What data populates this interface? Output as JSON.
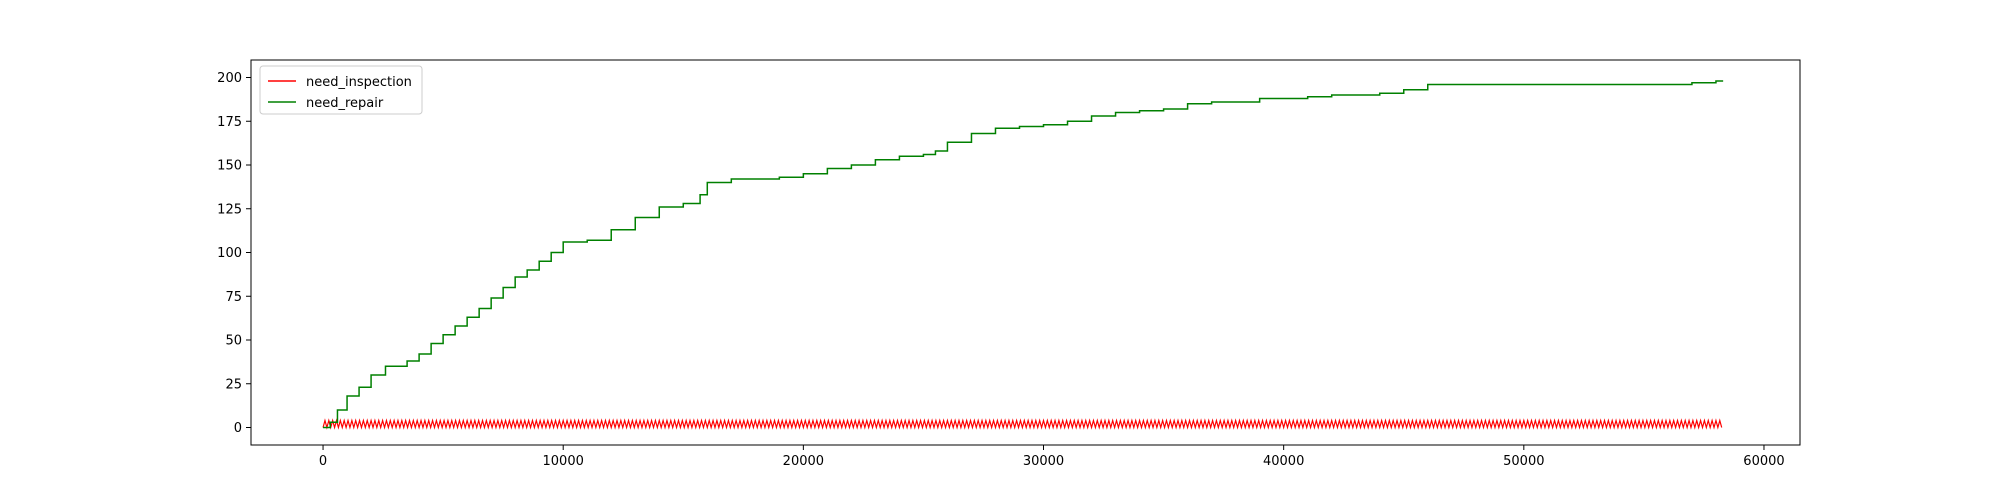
{
  "chart_data": {
    "type": "line",
    "title": "",
    "xlabel": "",
    "ylabel": "",
    "xlim": [
      -3000,
      61500
    ],
    "ylim": [
      -10,
      210
    ],
    "xticks": [
      0,
      10000,
      20000,
      30000,
      40000,
      50000,
      60000
    ],
    "yticks": [
      0,
      25,
      50,
      75,
      100,
      125,
      150,
      175,
      200
    ],
    "xtick_labels": [
      "0",
      "10000",
      "20000",
      "30000",
      "40000",
      "50000",
      "60000"
    ],
    "ytick_labels": [
      "0",
      "25",
      "50",
      "75",
      "100",
      "125",
      "150",
      "175",
      "200"
    ],
    "grid": false,
    "legend": {
      "placement": "top-left"
    },
    "series": [
      {
        "name": "need_inspection",
        "color": "#ff0000",
        "style": "oscillating",
        "x_range": [
          0,
          58300
        ],
        "value_range": [
          0,
          4
        ],
        "period": 160
      },
      {
        "name": "need_repair",
        "color": "#008000",
        "style": "steps",
        "x": [
          0,
          300,
          600,
          1000,
          1500,
          2000,
          2600,
          3500,
          4000,
          4500,
          5000,
          5500,
          6000,
          6500,
          7000,
          7500,
          8000,
          8500,
          9000,
          9500,
          10000,
          11000,
          12000,
          13000,
          14000,
          15000,
          15700,
          16000,
          17000,
          18000,
          19000,
          20000,
          21000,
          22000,
          23000,
          24000,
          25000,
          25500,
          26000,
          27000,
          28000,
          29000,
          30000,
          31000,
          32000,
          33000,
          34000,
          35000,
          36000,
          37000,
          38000,
          39000,
          40000,
          41000,
          42000,
          43000,
          44000,
          45000,
          46000,
          47000,
          48000,
          50000,
          52000,
          54000,
          56000,
          57000,
          58000,
          58300
        ],
        "y": [
          0,
          3,
          10,
          18,
          23,
          30,
          35,
          38,
          42,
          48,
          53,
          58,
          63,
          68,
          74,
          80,
          86,
          90,
          95,
          100,
          106,
          107,
          113,
          120,
          126,
          128,
          133,
          140,
          142,
          142,
          143,
          145,
          148,
          150,
          153,
          155,
          156,
          158,
          163,
          168,
          171,
          172,
          173,
          175,
          178,
          180,
          181,
          182,
          185,
          186,
          186,
          188,
          188,
          189,
          190,
          190,
          191,
          193,
          196,
          196,
          196,
          196,
          196,
          196,
          196,
          197,
          198,
          198
        ]
      }
    ]
  }
}
